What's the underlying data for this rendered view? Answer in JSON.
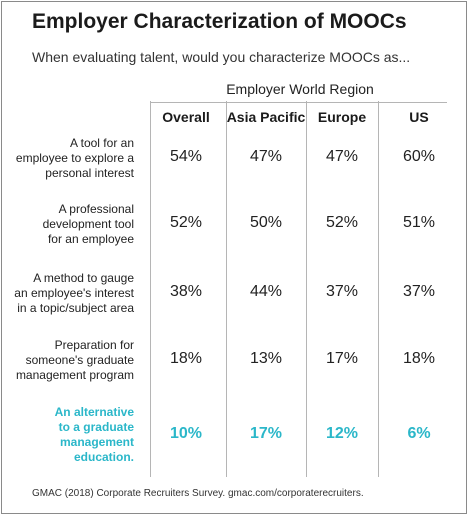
{
  "chart_data": {
    "type": "table",
    "title": "Employer Characterization of MOOCs",
    "subtitle": "When evaluating talent, would you characterize MOOCs as...",
    "column_group_header": "Employer World Region",
    "columns": [
      "Overall",
      "Asia Pacific",
      "Europe",
      "US"
    ],
    "rows": [
      {
        "label_lines": [
          "A tool for an",
          "employee to explore a",
          "personal interest"
        ],
        "values": [
          "54%",
          "47%",
          "47%",
          "60%"
        ],
        "highlight": false
      },
      {
        "label_lines": [
          "A professional",
          "development tool",
          "for an employee"
        ],
        "values": [
          "52%",
          "50%",
          "52%",
          "51%"
        ],
        "highlight": false
      },
      {
        "label_lines": [
          "A method to gauge",
          "an employee's interest",
          "in a topic/subject area"
        ],
        "values": [
          "38%",
          "44%",
          "37%",
          "37%"
        ],
        "highlight": false
      },
      {
        "label_lines": [
          "Preparation for",
          "someone's graduate",
          "management program"
        ],
        "values": [
          "18%",
          "13%",
          "17%",
          "18%"
        ],
        "highlight": false
      },
      {
        "label_lines": [
          "An alternative",
          "to a graduate",
          "management",
          "education."
        ],
        "values": [
          "10%",
          "17%",
          "12%",
          "6%"
        ],
        "highlight": true
      }
    ],
    "source": "GMAC (2018) Corporate Recruiters Survey. gmac.com/corporaterecruiters.",
    "colors": {
      "text": "#222222",
      "highlight": "#2bb7c9",
      "rule": "#b5b5b5",
      "border": "#8a8a8a"
    }
  }
}
